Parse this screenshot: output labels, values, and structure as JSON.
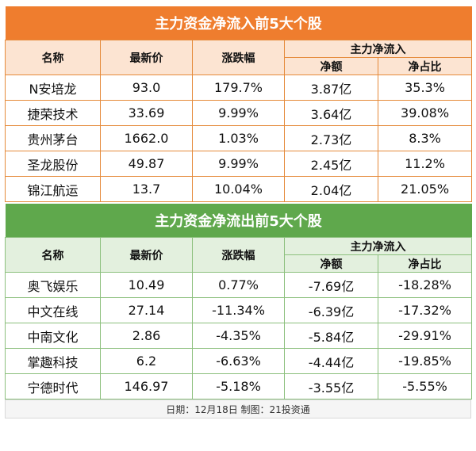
{
  "inflow": {
    "title": "主力资金净流入前5大个股",
    "headers": {
      "name": "名称",
      "price": "最新价",
      "change": "涨跌幅",
      "group": "主力净流入",
      "net": "净额",
      "ratio": "净占比"
    },
    "rows": [
      {
        "name": "N安培龙",
        "price": "93.0",
        "change": "179.7%",
        "net": "3.87亿",
        "ratio": "35.3%"
      },
      {
        "name": "捷荣技术",
        "price": "33.69",
        "change": "9.99%",
        "net": "3.64亿",
        "ratio": "39.08%"
      },
      {
        "name": "贵州茅台",
        "price": "1662.0",
        "change": "1.03%",
        "net": "2.73亿",
        "ratio": "8.3%"
      },
      {
        "name": "圣龙股份",
        "price": "49.87",
        "change": "9.99%",
        "net": "2.45亿",
        "ratio": "11.2%"
      },
      {
        "name": "锦江航运",
        "price": "13.7",
        "change": "10.04%",
        "net": "2.04亿",
        "ratio": "21.05%"
      }
    ]
  },
  "outflow": {
    "title": "主力资金净流出前5大个股",
    "headers": {
      "name": "名称",
      "price": "最新价",
      "change": "涨跌幅",
      "group": "主力净流入",
      "net": "净额",
      "ratio": "净占比"
    },
    "rows": [
      {
        "name": "奥飞娱乐",
        "price": "10.49",
        "change": "0.77%",
        "net": "-7.69亿",
        "ratio": "-18.28%"
      },
      {
        "name": "中文在线",
        "price": "27.14",
        "change": "-11.34%",
        "net": "-6.39亿",
        "ratio": "-17.32%"
      },
      {
        "name": "中南文化",
        "price": "2.86",
        "change": "-4.35%",
        "net": "-5.84亿",
        "ratio": "-29.91%"
      },
      {
        "name": "掌趣科技",
        "price": "6.2",
        "change": "-6.63%",
        "net": "-4.44亿",
        "ratio": "-19.85%"
      },
      {
        "name": "宁德时代",
        "price": "146.97",
        "change": "-5.18%",
        "net": "-3.55亿",
        "ratio": "-5.55%"
      }
    ]
  },
  "footer": "日期：12月18日 制图：21投资通",
  "colors": {
    "inflow_accent": "#ef7d2e",
    "outflow_accent": "#5fa84c"
  }
}
